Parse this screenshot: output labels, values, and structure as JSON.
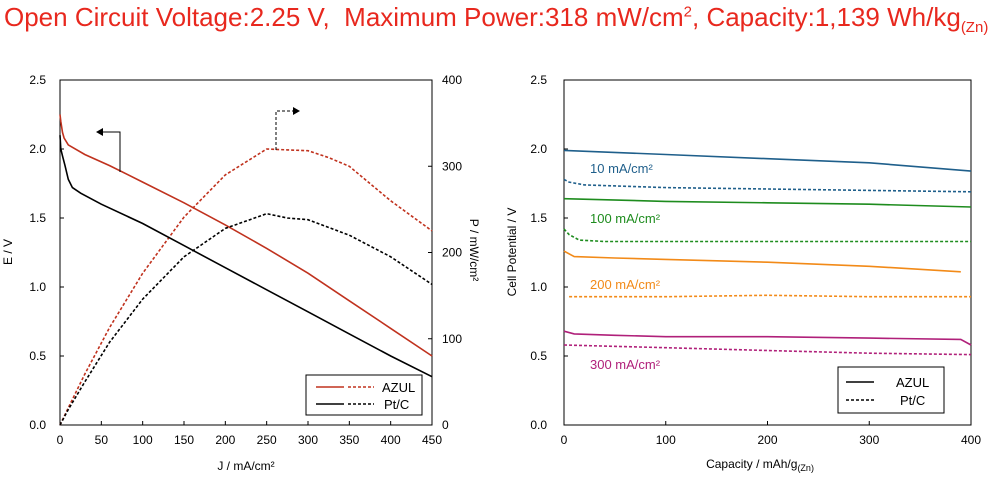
{
  "header": {
    "ocv_label": "Open Circuit Voltage:2.25 V,",
    "power_label": "Maximum Power:318 mW/cm",
    "power_sup": "2",
    "capacity_label": ", Capacity:1,139 Wh/kg",
    "capacity_sub": "(Zn)"
  },
  "colors": {
    "header": "#e8281e",
    "azul": "#c0321e",
    "ptc": "#000000",
    "c10": "#1f5f8b",
    "c100": "#1e8c1e",
    "c200": "#f28a18",
    "c300": "#b0207a"
  },
  "chart_data": [
    {
      "type": "line",
      "xlabel": "J / mA/cm²",
      "ylabel": "E / V",
      "y2label": "P / mW/cm²",
      "xlim": [
        0,
        450
      ],
      "ylim": [
        0,
        2.5
      ],
      "y2lim": [
        0,
        400
      ],
      "xticks": [
        "0",
        "50",
        "100",
        "150",
        "200",
        "250",
        "300",
        "350",
        "400",
        "450"
      ],
      "yticks": [
        "0.0",
        "0.5",
        "1.0",
        "1.5",
        "2.0",
        "2.5"
      ],
      "y2ticks": [
        "0",
        "100",
        "200",
        "300",
        "400"
      ],
      "legend": {
        "position": "bottom-right",
        "entries": [
          "AZUL",
          "Pt/C"
        ]
      },
      "series": [
        {
          "name": "AZUL",
          "axis": "E",
          "style": "solid",
          "color": "#c0321e",
          "x": [
            0,
            1,
            3,
            5,
            10,
            30,
            60,
            100,
            150,
            200,
            250,
            300,
            350,
            400,
            450
          ],
          "y": [
            2.25,
            2.2,
            2.12,
            2.08,
            2.03,
            1.96,
            1.88,
            1.76,
            1.61,
            1.45,
            1.28,
            1.1,
            0.9,
            0.7,
            0.5
          ]
        },
        {
          "name": "AZUL",
          "axis": "P",
          "style": "dashed",
          "color": "#c0321e",
          "x": [
            0,
            10,
            30,
            60,
            100,
            150,
            200,
            250,
            275,
            300,
            325,
            350,
            400,
            450
          ],
          "y": [
            0,
            20,
            59,
            113,
            176,
            241,
            290,
            320,
            319,
            318,
            310,
            300,
            260,
            225
          ]
        },
        {
          "name": "Pt/C",
          "axis": "E",
          "style": "solid",
          "color": "#000000",
          "x": [
            0,
            1,
            3,
            6,
            10,
            15,
            25,
            50,
            100,
            150,
            200,
            250,
            300,
            350,
            400,
            450
          ],
          "y": [
            2.1,
            2.0,
            1.95,
            1.88,
            1.78,
            1.72,
            1.68,
            1.6,
            1.46,
            1.3,
            1.14,
            0.98,
            0.82,
            0.66,
            0.5,
            0.35
          ]
        },
        {
          "name": "Pt/C",
          "axis": "P",
          "style": "dashed",
          "color": "#000000",
          "x": [
            0,
            10,
            30,
            60,
            100,
            150,
            200,
            250,
            275,
            300,
            350,
            400,
            450
          ],
          "y": [
            0,
            18,
            50,
            96,
            146,
            195,
            228,
            245,
            240,
            238,
            220,
            195,
            163
          ]
        }
      ],
      "annotations": [
        {
          "text": "←",
          "meaning": "left-axis arrow"
        },
        {
          "text": "→",
          "meaning": "right-axis arrow"
        }
      ]
    },
    {
      "type": "line",
      "xlabel": "Capacity / mAh/g",
      "xlabel_sub": "(Zn)",
      "ylabel": "Cell Potential / V",
      "xlim": [
        0,
        400
      ],
      "ylim": [
        0,
        2.5
      ],
      "xticks": [
        "0",
        "100",
        "200",
        "300",
        "400"
      ],
      "yticks": [
        "0.0",
        "0.5",
        "1.0",
        "1.5",
        "2.0",
        "2.5"
      ],
      "legend": {
        "position": "bottom-right",
        "entries": [
          "AZUL",
          "Pt/C"
        ]
      },
      "series": [
        {
          "name": "AZUL",
          "group": "10 mA/cm²",
          "style": "solid",
          "color": "#1f5f8b",
          "x": [
            0,
            100,
            200,
            300,
            400
          ],
          "y": [
            1.99,
            1.96,
            1.93,
            1.9,
            1.84
          ]
        },
        {
          "name": "Pt/C",
          "group": "10 mA/cm²",
          "style": "dashed",
          "color": "#1f5f8b",
          "x": [
            0,
            5,
            20,
            100,
            200,
            300,
            400
          ],
          "y": [
            1.78,
            1.76,
            1.74,
            1.72,
            1.71,
            1.7,
            1.69
          ]
        },
        {
          "name": "AZUL",
          "group": "100 mA/cm²",
          "style": "solid",
          "color": "#1e8c1e",
          "x": [
            0,
            100,
            200,
            300,
            400
          ],
          "y": [
            1.64,
            1.62,
            1.61,
            1.6,
            1.58
          ]
        },
        {
          "name": "Pt/C",
          "group": "100 mA/cm²",
          "style": "dashed",
          "color": "#1e8c1e",
          "x": [
            0,
            5,
            15,
            40,
            100,
            200,
            300,
            400
          ],
          "y": [
            1.42,
            1.38,
            1.34,
            1.33,
            1.33,
            1.33,
            1.33,
            1.33
          ]
        },
        {
          "name": "AZUL",
          "group": "200 mA/cm²",
          "style": "solid",
          "color": "#f28a18",
          "x": [
            0,
            10,
            50,
            100,
            200,
            300,
            390
          ],
          "y": [
            1.26,
            1.22,
            1.21,
            1.2,
            1.18,
            1.15,
            1.11
          ]
        },
        {
          "name": "Pt/C",
          "group": "200 mA/cm²",
          "style": "dashed",
          "color": "#f28a18",
          "x": [
            5,
            100,
            200,
            300,
            400
          ],
          "y": [
            0.93,
            0.93,
            0.94,
            0.93,
            0.93
          ]
        },
        {
          "name": "AZUL",
          "group": "300 mA/cm²",
          "style": "solid",
          "color": "#b0207a",
          "x": [
            0,
            10,
            50,
            100,
            200,
            300,
            390,
            400
          ],
          "y": [
            0.68,
            0.66,
            0.65,
            0.64,
            0.64,
            0.63,
            0.62,
            0.58
          ]
        },
        {
          "name": "Pt/C",
          "group": "300 mA/cm²",
          "style": "dashed",
          "color": "#b0207a",
          "x": [
            0,
            100,
            200,
            300,
            400
          ],
          "y": [
            0.58,
            0.56,
            0.54,
            0.52,
            0.51
          ]
        }
      ],
      "annotations": [
        "10 mA/cm²",
        "100 mA/cm²",
        "200 mA/cm²",
        "300 mA/cm²"
      ]
    }
  ]
}
